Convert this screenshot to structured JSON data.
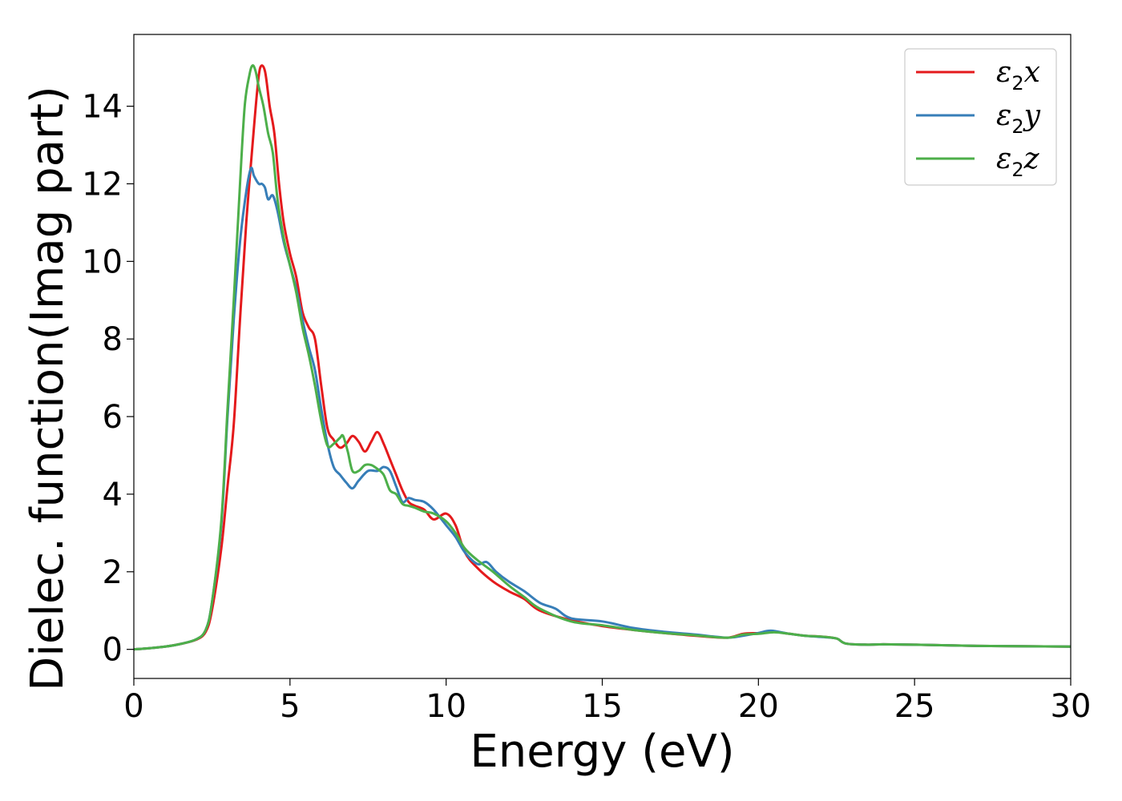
{
  "chart_data": {
    "type": "line",
    "title": "",
    "xlabel": "Energy (eV)",
    "ylabel": "Dielec. function(Imag part)",
    "xlim": [
      0,
      30
    ],
    "ylim": [
      -0.75,
      15.85
    ],
    "xticks": [
      0,
      5,
      10,
      15,
      20,
      25,
      30
    ],
    "yticks": [
      0,
      2,
      4,
      6,
      8,
      10,
      12,
      14
    ],
    "grid": false,
    "legend_position": "top-right",
    "series": [
      {
        "name": "ε2x",
        "legend_main": "ε",
        "legend_sub": "2",
        "legend_tail": "x",
        "color": "#e41a1c",
        "points": [
          [
            0,
            0
          ],
          [
            0.5,
            0.03
          ],
          [
            1.0,
            0.07
          ],
          [
            1.5,
            0.14
          ],
          [
            2.0,
            0.25
          ],
          [
            2.3,
            0.45
          ],
          [
            2.5,
            1.0
          ],
          [
            2.8,
            2.6
          ],
          [
            3.0,
            4.2
          ],
          [
            3.2,
            5.8
          ],
          [
            3.4,
            8.5
          ],
          [
            3.6,
            11.0
          ],
          [
            3.8,
            13.0
          ],
          [
            3.95,
            14.4
          ],
          [
            4.05,
            15.0
          ],
          [
            4.2,
            14.9
          ],
          [
            4.35,
            14.0
          ],
          [
            4.5,
            13.3
          ],
          [
            4.65,
            12.0
          ],
          [
            4.8,
            11.0
          ],
          [
            5.0,
            10.2
          ],
          [
            5.2,
            9.6
          ],
          [
            5.4,
            8.7
          ],
          [
            5.6,
            8.3
          ],
          [
            5.8,
            8.0
          ],
          [
            6.0,
            6.8
          ],
          [
            6.2,
            5.7
          ],
          [
            6.4,
            5.4
          ],
          [
            6.6,
            5.2
          ],
          [
            6.8,
            5.3
          ],
          [
            7.0,
            5.5
          ],
          [
            7.2,
            5.35
          ],
          [
            7.4,
            5.1
          ],
          [
            7.6,
            5.35
          ],
          [
            7.8,
            5.6
          ],
          [
            8.0,
            5.3
          ],
          [
            8.2,
            4.9
          ],
          [
            8.4,
            4.5
          ],
          [
            8.6,
            4.1
          ],
          [
            8.8,
            3.8
          ],
          [
            9.0,
            3.7
          ],
          [
            9.3,
            3.6
          ],
          [
            9.6,
            3.35
          ],
          [
            10.0,
            3.5
          ],
          [
            10.3,
            3.2
          ],
          [
            10.6,
            2.5
          ],
          [
            11.0,
            2.1
          ],
          [
            11.5,
            1.75
          ],
          [
            12.0,
            1.5
          ],
          [
            12.5,
            1.3
          ],
          [
            13.0,
            1.0
          ],
          [
            14.0,
            0.75
          ],
          [
            15.0,
            0.6
          ],
          [
            16.0,
            0.5
          ],
          [
            17.0,
            0.42
          ],
          [
            18.0,
            0.35
          ],
          [
            19.0,
            0.3
          ],
          [
            19.5,
            0.4
          ],
          [
            20.0,
            0.42
          ],
          [
            20.5,
            0.45
          ],
          [
            21.0,
            0.4
          ],
          [
            21.5,
            0.35
          ],
          [
            22.0,
            0.33
          ],
          [
            22.5,
            0.28
          ],
          [
            22.8,
            0.15
          ],
          [
            23.5,
            0.12
          ],
          [
            24.0,
            0.13
          ],
          [
            25.0,
            0.12
          ],
          [
            27.0,
            0.09
          ],
          [
            30.0,
            0.07
          ]
        ]
      },
      {
        "name": "ε2y",
        "legend_main": "ε",
        "legend_sub": "2",
        "legend_tail": "y",
        "color": "#377eb8",
        "points": [
          [
            0,
            0
          ],
          [
            0.5,
            0.03
          ],
          [
            1.0,
            0.07
          ],
          [
            1.5,
            0.14
          ],
          [
            2.0,
            0.26
          ],
          [
            2.3,
            0.5
          ],
          [
            2.5,
            1.2
          ],
          [
            2.8,
            3.2
          ],
          [
            3.0,
            6.0
          ],
          [
            3.2,
            8.5
          ],
          [
            3.4,
            10.5
          ],
          [
            3.6,
            11.8
          ],
          [
            3.75,
            12.4
          ],
          [
            3.85,
            12.2
          ],
          [
            4.0,
            12.0
          ],
          [
            4.1,
            12.0
          ],
          [
            4.2,
            11.9
          ],
          [
            4.3,
            11.6
          ],
          [
            4.45,
            11.7
          ],
          [
            4.6,
            11.3
          ],
          [
            4.8,
            10.5
          ],
          [
            5.0,
            9.9
          ],
          [
            5.2,
            9.3
          ],
          [
            5.4,
            8.5
          ],
          [
            5.6,
            7.8
          ],
          [
            5.8,
            7.2
          ],
          [
            6.0,
            6.2
          ],
          [
            6.2,
            5.3
          ],
          [
            6.4,
            4.7
          ],
          [
            6.6,
            4.5
          ],
          [
            6.8,
            4.3
          ],
          [
            7.0,
            4.15
          ],
          [
            7.2,
            4.35
          ],
          [
            7.5,
            4.6
          ],
          [
            7.8,
            4.6
          ],
          [
            8.0,
            4.7
          ],
          [
            8.2,
            4.6
          ],
          [
            8.4,
            4.2
          ],
          [
            8.6,
            3.8
          ],
          [
            8.8,
            3.9
          ],
          [
            9.0,
            3.85
          ],
          [
            9.3,
            3.8
          ],
          [
            9.6,
            3.6
          ],
          [
            10.0,
            3.2
          ],
          [
            10.3,
            2.9
          ],
          [
            10.6,
            2.5
          ],
          [
            11.0,
            2.2
          ],
          [
            11.3,
            2.25
          ],
          [
            11.6,
            2.0
          ],
          [
            12.0,
            1.75
          ],
          [
            12.5,
            1.5
          ],
          [
            13.0,
            1.2
          ],
          [
            13.5,
            1.05
          ],
          [
            14.0,
            0.8
          ],
          [
            15.0,
            0.72
          ],
          [
            16.0,
            0.55
          ],
          [
            17.0,
            0.45
          ],
          [
            18.0,
            0.38
          ],
          [
            19.0,
            0.3
          ],
          [
            19.5,
            0.35
          ],
          [
            20.0,
            0.42
          ],
          [
            20.4,
            0.48
          ],
          [
            21.0,
            0.4
          ],
          [
            21.5,
            0.35
          ],
          [
            22.0,
            0.32
          ],
          [
            22.5,
            0.28
          ],
          [
            22.8,
            0.15
          ],
          [
            23.5,
            0.12
          ],
          [
            24.0,
            0.13
          ],
          [
            25.0,
            0.12
          ],
          [
            27.0,
            0.09
          ],
          [
            30.0,
            0.07
          ]
        ]
      },
      {
        "name": "ε2z",
        "legend_main": "ε",
        "legend_sub": "2",
        "legend_tail": "z",
        "color": "#4daf4a",
        "points": [
          [
            0,
            0
          ],
          [
            0.5,
            0.03
          ],
          [
            1.0,
            0.07
          ],
          [
            1.5,
            0.14
          ],
          [
            2.0,
            0.26
          ],
          [
            2.3,
            0.5
          ],
          [
            2.5,
            1.2
          ],
          [
            2.8,
            3.3
          ],
          [
            3.0,
            6.2
          ],
          [
            3.2,
            9.0
          ],
          [
            3.4,
            12.0
          ],
          [
            3.55,
            14.0
          ],
          [
            3.7,
            14.8
          ],
          [
            3.8,
            15.05
          ],
          [
            3.9,
            14.9
          ],
          [
            4.0,
            14.5
          ],
          [
            4.15,
            14.0
          ],
          [
            4.3,
            13.3
          ],
          [
            4.45,
            12.8
          ],
          [
            4.6,
            11.6
          ],
          [
            4.8,
            10.6
          ],
          [
            5.0,
            9.9
          ],
          [
            5.2,
            9.2
          ],
          [
            5.4,
            8.3
          ],
          [
            5.6,
            7.6
          ],
          [
            5.8,
            6.8
          ],
          [
            6.0,
            5.9
          ],
          [
            6.2,
            5.25
          ],
          [
            6.4,
            5.3
          ],
          [
            6.6,
            5.45
          ],
          [
            6.7,
            5.5
          ],
          [
            6.85,
            5.1
          ],
          [
            7.0,
            4.6
          ],
          [
            7.2,
            4.6
          ],
          [
            7.4,
            4.75
          ],
          [
            7.6,
            4.75
          ],
          [
            7.8,
            4.65
          ],
          [
            8.0,
            4.5
          ],
          [
            8.2,
            4.1
          ],
          [
            8.4,
            4.0
          ],
          [
            8.6,
            3.75
          ],
          [
            8.8,
            3.7
          ],
          [
            9.0,
            3.65
          ],
          [
            9.3,
            3.55
          ],
          [
            9.6,
            3.5
          ],
          [
            10.0,
            3.3
          ],
          [
            10.3,
            3.0
          ],
          [
            10.6,
            2.6
          ],
          [
            11.0,
            2.3
          ],
          [
            11.5,
            2.0
          ],
          [
            12.0,
            1.65
          ],
          [
            12.5,
            1.35
          ],
          [
            13.0,
            1.05
          ],
          [
            14.0,
            0.72
          ],
          [
            15.0,
            0.62
          ],
          [
            16.0,
            0.5
          ],
          [
            17.0,
            0.42
          ],
          [
            18.0,
            0.36
          ],
          [
            19.0,
            0.3
          ],
          [
            19.5,
            0.38
          ],
          [
            20.0,
            0.4
          ],
          [
            20.5,
            0.44
          ],
          [
            21.0,
            0.4
          ],
          [
            21.5,
            0.35
          ],
          [
            22.0,
            0.33
          ],
          [
            22.5,
            0.28
          ],
          [
            22.8,
            0.15
          ],
          [
            23.5,
            0.12
          ],
          [
            24.0,
            0.13
          ],
          [
            25.0,
            0.12
          ],
          [
            27.0,
            0.09
          ],
          [
            30.0,
            0.07
          ]
        ]
      }
    ]
  }
}
